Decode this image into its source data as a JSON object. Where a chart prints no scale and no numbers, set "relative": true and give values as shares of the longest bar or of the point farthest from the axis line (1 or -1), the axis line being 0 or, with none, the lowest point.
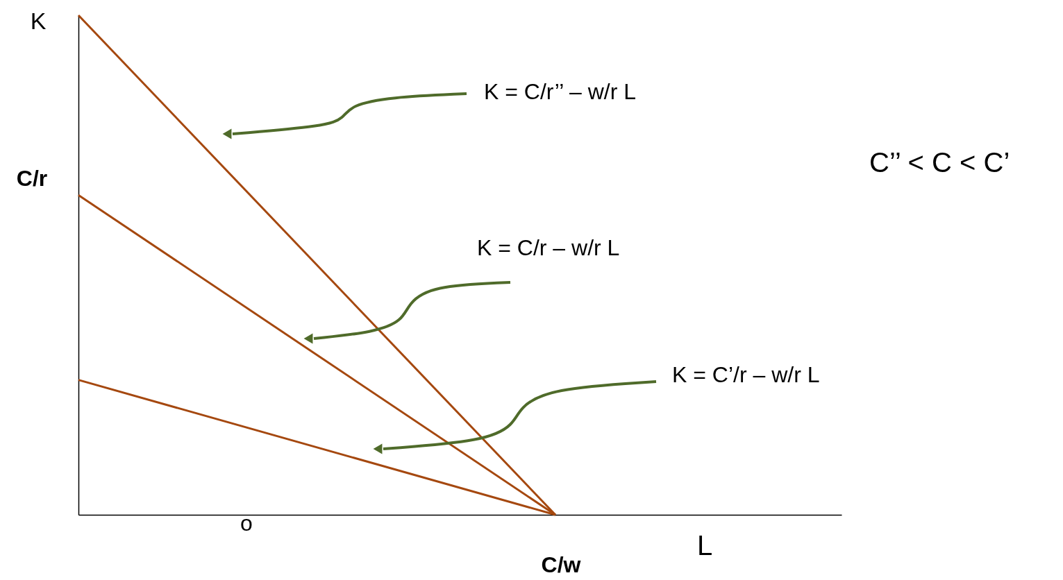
{
  "chart_data": {
    "type": "line",
    "relative": true,
    "xlabel": "L",
    "ylabel": "K",
    "categories": [
      null,
      null,
      null,
      null,
      null,
      null,
      null,
      null,
      null
    ],
    "series": [
      {
        "color": "#a5480f",
        "values": [
          1,
          null,
          null,
          null,
          null,
          0,
          null,
          null,
          null
        ]
      },
      {
        "color": "#a5480f",
        "values": [
          0.64,
          null,
          null,
          null,
          null,
          0,
          null,
          null,
          null
        ]
      },
      {
        "color": "#a5480f",
        "values": [
          0.27,
          null,
          null,
          null,
          null,
          0,
          null,
          null,
          null
        ]
      }
    ],
    "annotations": [
      "K = C/r’’ – w/r L",
      "K = C/r – w/r L",
      "K = C’/r – w/r L",
      "C’’ < C < C’",
      "C/r",
      "C/w",
      "o"
    ],
    "marker": "none",
    "line_style": "solid"
  }
}
